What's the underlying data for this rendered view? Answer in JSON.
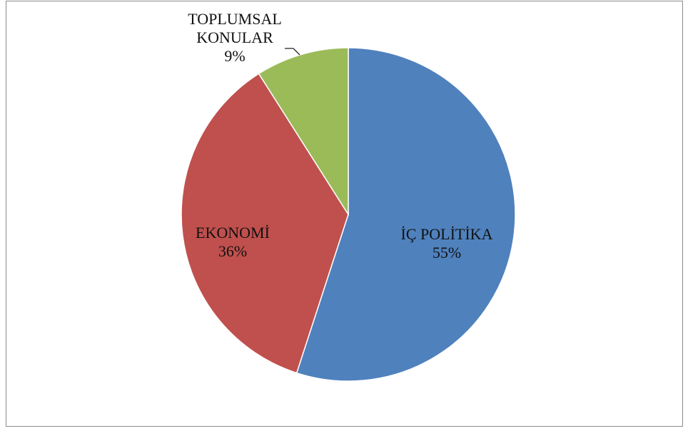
{
  "chart_data": {
    "type": "pie",
    "title": "",
    "slices": [
      {
        "label_lines": [
          "İÇ POLİTİKA"
        ],
        "percent_label": "55%",
        "value": 55,
        "color": "#4F81BD"
      },
      {
        "label_lines": [
          "EKONOMİ"
        ],
        "percent_label": "36%",
        "value": 36,
        "color": "#C0504D"
      },
      {
        "label_lines": [
          "TOPLUMSAL",
          "KONULAR"
        ],
        "percent_label": "9%",
        "value": 9,
        "color": "#9BBB59"
      }
    ],
    "start_angle_deg": 0,
    "direction": "clockwise",
    "legend": "none",
    "data_labels": "category and percent"
  }
}
